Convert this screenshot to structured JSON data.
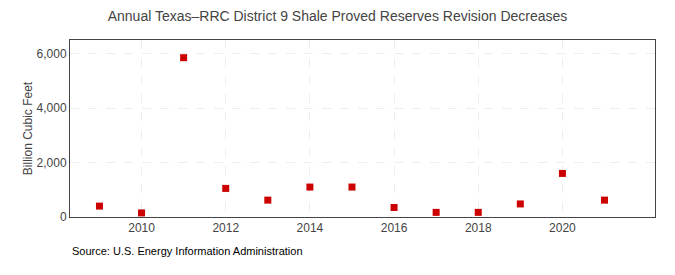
{
  "chart_data": {
    "type": "scatter",
    "title": "Annual Texas–RRC District 9 Shale Proved Reserves Revision Decreases",
    "y_label": "Billion Cubic Feet",
    "annotations": [
      "Source: U.S. Energy Information Administration"
    ],
    "x": [
      2009,
      2010,
      2011,
      2012,
      2013,
      2014,
      2015,
      2016,
      2017,
      2018,
      2019,
      2020,
      2021
    ],
    "values": [
      400,
      150,
      5850,
      1050,
      620,
      1100,
      1100,
      350,
      170,
      170,
      480,
      1600,
      620
    ],
    "color": "#cc0000",
    "marker": "square",
    "xlim": [
      2008.3,
      2022.2
    ],
    "xticks": [
      2010,
      2012,
      2014,
      2016,
      2018,
      2020
    ],
    "ylim": [
      0,
      6500
    ],
    "yticks": [
      0,
      {
        "value": 2000,
        "label": "2,000"
      },
      {
        "value": 4000,
        "label": "4,000"
      },
      {
        "value": 6000,
        "label": "6,000"
      }
    ],
    "grid": true
  }
}
